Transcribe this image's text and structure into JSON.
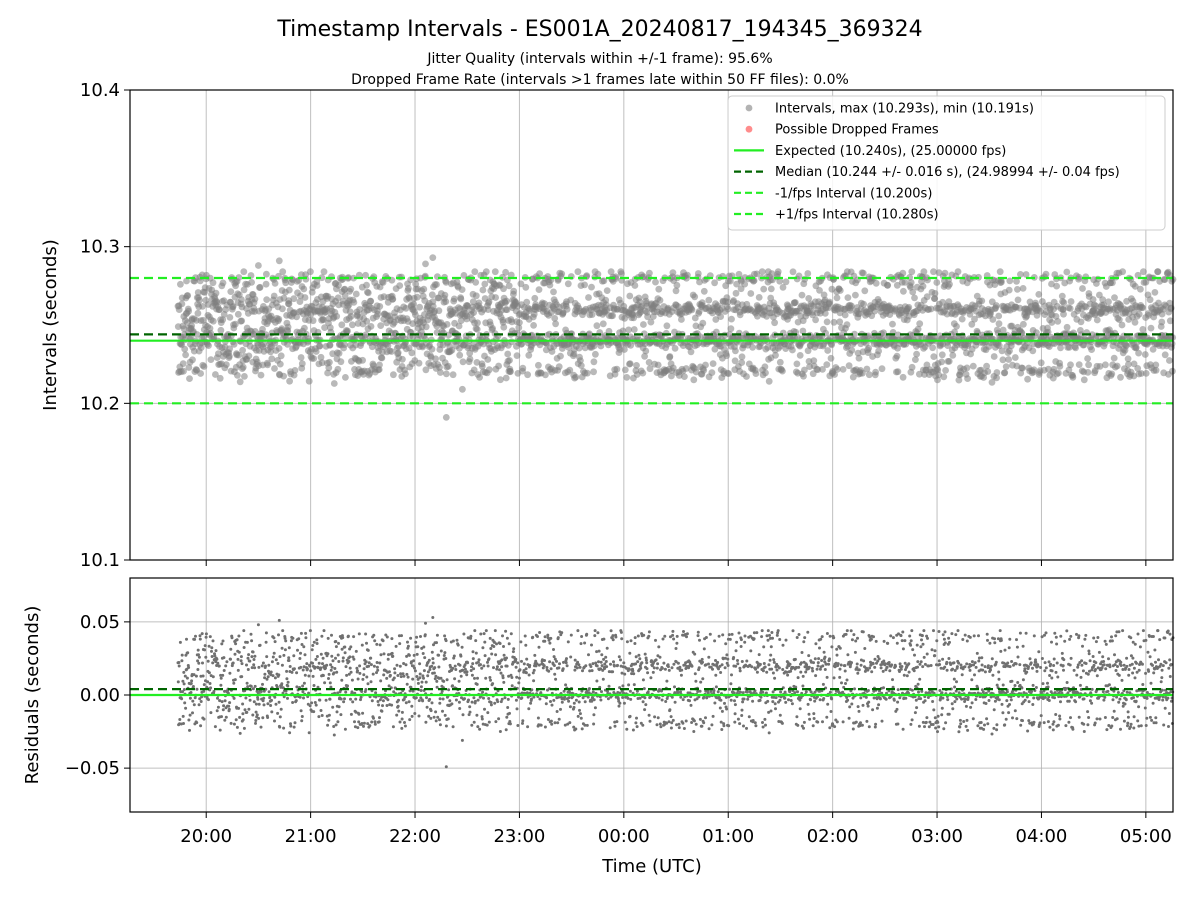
{
  "chart_data": {
    "type": "scatter",
    "title": "Timestamp Intervals - ES001A_20240817_194345_369324",
    "subtitles": [
      "Jitter Quality (intervals within +/-1 frame): 95.6%",
      "Dropped Frame Rate (intervals >1 frames late within 50 FF files): 0.0%"
    ],
    "xlabel": "Time (UTC)",
    "x_ticks": [
      "20:00",
      "21:00",
      "22:00",
      "23:00",
      "00:00",
      "01:00",
      "02:00",
      "03:00",
      "04:00",
      "05:00"
    ],
    "x_range_hours": [
      19.27,
      29.26
    ],
    "x_data_range_hours": [
      19.73,
      29.26
    ],
    "grid": true,
    "legend_position": "top-right",
    "colors": {
      "points": "#808080",
      "dropped": "#ff4040",
      "expected": "#22ee22",
      "median": "#006400",
      "interval_bounds": "#22ee22"
    },
    "top_panel": {
      "ylabel": "Intervals (seconds)",
      "ylim": [
        10.1,
        10.4
      ],
      "y_ticks": [
        "10.1",
        "10.2",
        "10.3",
        "10.4"
      ],
      "y_tick_values": [
        10.1,
        10.2,
        10.3,
        10.4
      ],
      "series": [
        {
          "name": "Intervals, max (10.293s), min (10.191s)",
          "kind": "scatter",
          "max": 10.293,
          "min": 10.191,
          "clusters": [
            10.22,
            10.24,
            10.26,
            10.28
          ],
          "cluster_weights": [
            0.12,
            0.42,
            0.34,
            0.12
          ],
          "outliers": [
            [
              22.3,
              10.191
            ],
            [
              22.17,
              10.293
            ],
            [
              20.7,
              10.291
            ],
            [
              20.5,
              10.288
            ],
            [
              22.1,
              10.289
            ]
          ]
        },
        {
          "name": "Possible Dropped Frames",
          "kind": "scatter",
          "values": []
        }
      ],
      "lines": [
        {
          "name": "Expected (10.240s), (25.00000 fps)",
          "y": 10.24,
          "style": "solid"
        },
        {
          "name": "Median (10.244 +/- 0.016 s), (24.98994 +/- 0.04 fps)",
          "y": 10.244,
          "style": "dashed"
        },
        {
          "name": "-1/fps Interval (10.200s)",
          "y": 10.2,
          "style": "dashed"
        },
        {
          "name": "+1/fps Interval (10.280s)",
          "y": 10.28,
          "style": "dashed"
        }
      ]
    },
    "bottom_panel": {
      "ylabel": "Residuals (seconds)",
      "ylim": [
        -0.08,
        0.08
      ],
      "y_ticks": [
        "−0.05",
        "0.00",
        "0.05"
      ],
      "y_tick_values": [
        -0.05,
        0.0,
        0.05
      ],
      "lines": [
        {
          "y": 0.0,
          "style": "solid"
        },
        {
          "y": 0.004,
          "style": "dashed"
        }
      ]
    }
  }
}
